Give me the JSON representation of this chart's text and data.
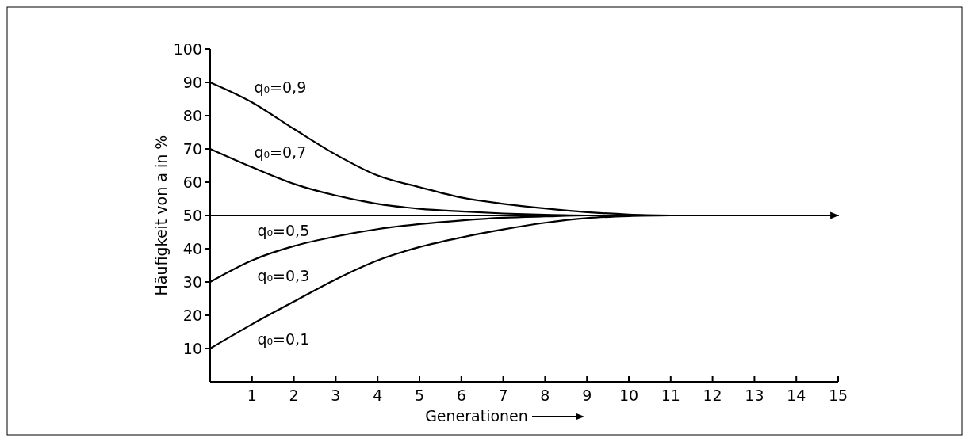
{
  "chart_data": {
    "type": "line",
    "xlabel": "Generationen",
    "ylabel": "Häufigkeit von a in %",
    "xlim": [
      0,
      15
    ],
    "xticks": [
      1,
      2,
      3,
      4,
      5,
      6,
      7,
      8,
      9,
      10,
      11,
      12,
      13,
      14,
      15
    ],
    "ylim": [
      0,
      100
    ],
    "yticks": [
      10,
      20,
      30,
      40,
      50,
      60,
      70,
      80,
      90,
      100
    ],
    "grid": false,
    "marker": "none",
    "line_style": "solid",
    "series": [
      {
        "name": "q₀=0,9",
        "color": "#000000",
        "x": [
          0,
          1,
          2,
          3,
          4,
          5,
          6,
          7,
          8,
          9,
          10,
          11
        ],
        "values": [
          90,
          84,
          76,
          68.3,
          62,
          58.5,
          55.4,
          53.5,
          52.1,
          51,
          50.3,
          50
        ]
      },
      {
        "name": "q₀=0,7",
        "color": "#000000",
        "x": [
          0,
          1,
          2,
          3,
          4,
          5,
          6,
          7,
          8,
          9,
          10
        ],
        "values": [
          70,
          64.5,
          59.5,
          56,
          53.5,
          52,
          51.2,
          50.6,
          50.2,
          50,
          50
        ]
      },
      {
        "name": "q₀=0,5",
        "color": "#000000",
        "x": [
          0,
          15
        ],
        "values": [
          50,
          50
        ]
      },
      {
        "name": "q₀=0,3",
        "color": "#000000",
        "x": [
          0,
          1,
          2,
          3,
          4,
          5,
          6,
          7,
          8,
          9,
          10
        ],
        "values": [
          30,
          36.5,
          40.8,
          43.7,
          45.9,
          47.4,
          48.5,
          49.3,
          49.7,
          50,
          50
        ]
      },
      {
        "name": "q₀=0,1",
        "color": "#000000",
        "x": [
          0,
          1,
          2,
          3,
          4,
          5,
          6,
          7,
          8,
          9,
          10,
          11
        ],
        "values": [
          10,
          17.3,
          24.1,
          30.8,
          36.5,
          40.5,
          43.4,
          45.8,
          47.8,
          49.2,
          49.8,
          50
        ]
      }
    ]
  }
}
